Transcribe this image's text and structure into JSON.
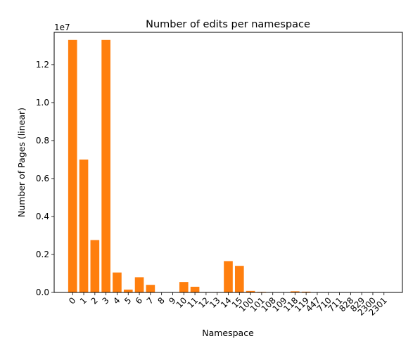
{
  "chart_data": {
    "type": "bar",
    "title": "Number of edits per namespace",
    "xlabel": "Namespace",
    "ylabel": "Number of Pages (linear)",
    "y_scale_label": "1e7",
    "y_tick_labels": [
      "0.0",
      "0.2",
      "0.4",
      "0.6",
      "0.8",
      "1.0",
      "1.2"
    ],
    "ylim": [
      0,
      1.37
    ],
    "bar_color": "#ff7f0e",
    "categories": [
      "0",
      "1",
      "2",
      "3",
      "4",
      "5",
      "6",
      "7",
      "8",
      "9",
      "10",
      "11",
      "12",
      "13",
      "14",
      "15",
      "100",
      "101",
      "108",
      "109",
      "118",
      "119",
      "447",
      "710",
      "711",
      "828",
      "829",
      "2300",
      "2301"
    ],
    "values": [
      1.33,
      0.7,
      0.276,
      1.33,
      0.105,
      0.015,
      0.08,
      0.04,
      0.001,
      0.001,
      0.055,
      0.03,
      0.002,
      0.002,
      0.165,
      0.14,
      0.008,
      0.003,
      0.001,
      0.001,
      0.006,
      0.004,
      0.001,
      0.001,
      0.001,
      0.001,
      0.001,
      0.001,
      0.001
    ],
    "grid": false,
    "legend": "none"
  }
}
